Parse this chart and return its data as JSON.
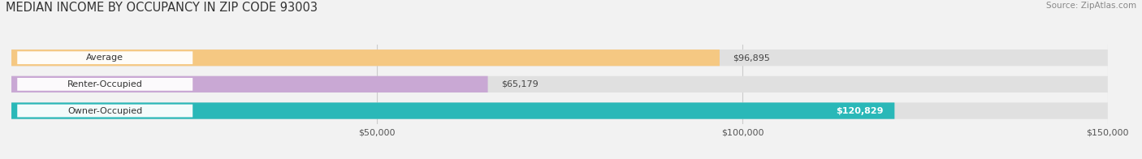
{
  "title": "MEDIAN INCOME BY OCCUPANCY IN ZIP CODE 93003",
  "source": "Source: ZipAtlas.com",
  "categories": [
    "Owner-Occupied",
    "Renter-Occupied",
    "Average"
  ],
  "values": [
    120829,
    65179,
    96895
  ],
  "bar_colors": [
    "#2ab8b8",
    "#c9a8d4",
    "#f5c882"
  ],
  "value_labels": [
    "$120,829",
    "$65,179",
    "$96,895"
  ],
  "value_label_inside": [
    true,
    false,
    false
  ],
  "xlim": [
    0,
    150000
  ],
  "xticks": [
    50000,
    100000,
    150000
  ],
  "xtick_labels": [
    "$50,000",
    "$100,000",
    "$150,000"
  ],
  "background_color": "#f2f2f2",
  "bar_bg_color": "#e0e0e0",
  "title_fontsize": 10.5,
  "source_fontsize": 7.5,
  "tick_fontsize": 8,
  "label_fontsize": 8,
  "value_fontsize": 8,
  "bar_height": 0.62,
  "figsize": [
    14.06,
    1.96
  ],
  "dpi": 100
}
